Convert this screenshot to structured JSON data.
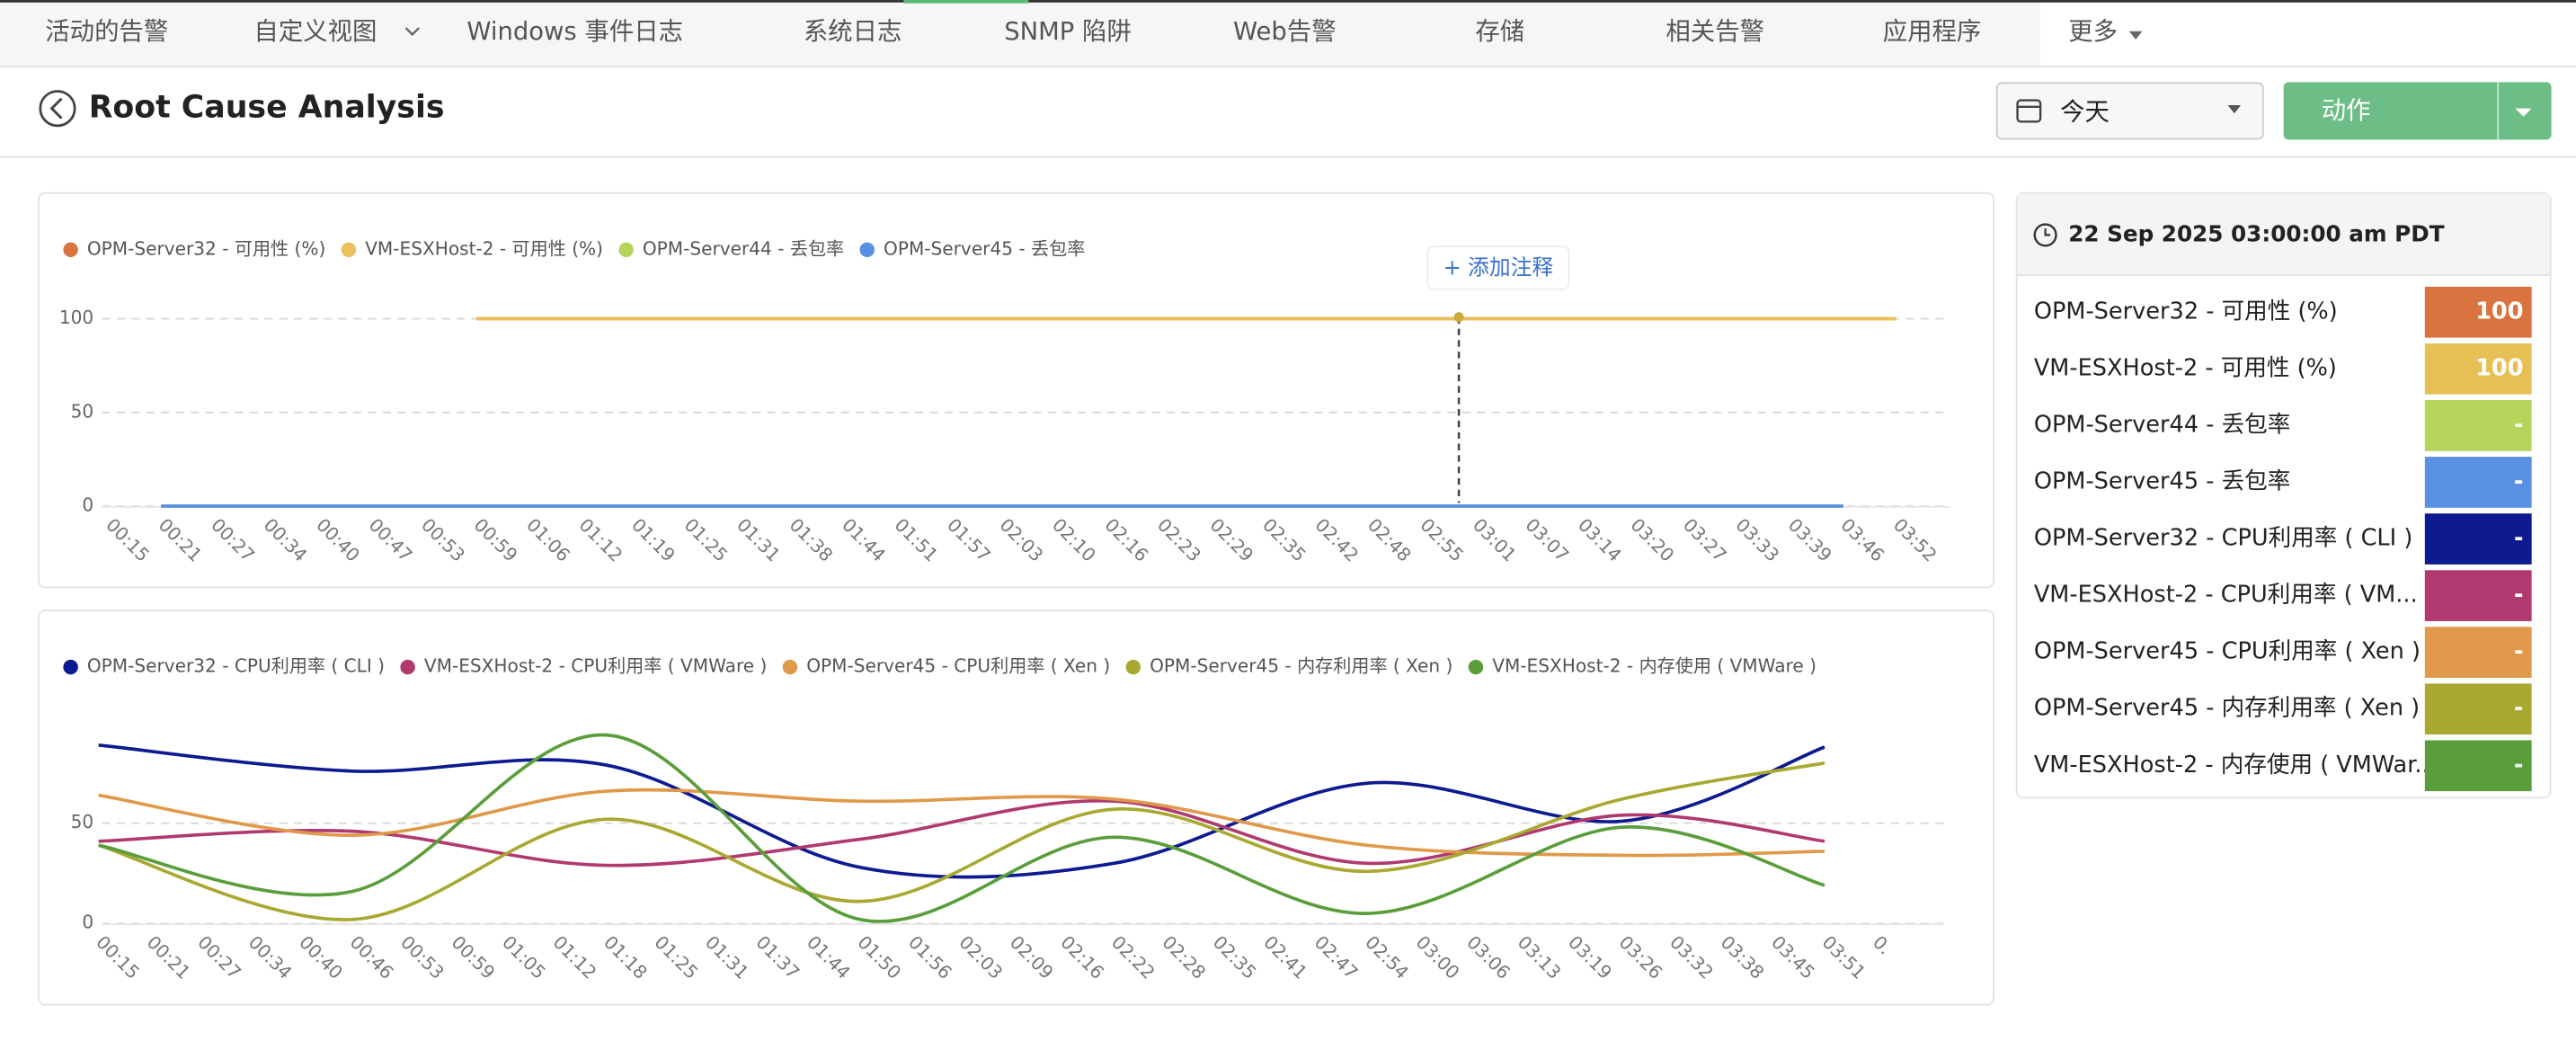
{
  "nav": [
    "活动的告警",
    "自定义视图",
    "Windows 事件日志",
    "系统日志",
    "SNMP 陷阱",
    "Web告警",
    "存储",
    "相关告警",
    "应用程序",
    "更多"
  ],
  "header": {
    "title": "Root Cause Analysis",
    "date": "今天",
    "action": "动作"
  },
  "tooltip": "+ 添加注释",
  "chart_data": [
    {
      "type": "line",
      "ylim": [
        0,
        100
      ],
      "yticks": [
        0,
        50,
        100
      ],
      "grid": true,
      "categories": [
        "00:15",
        "00:21",
        "00:27",
        "00:34",
        "00:40",
        "00:47",
        "00:53",
        "00:59",
        "01:06",
        "01:12",
        "01:19",
        "01:25",
        "01:31",
        "01:38",
        "01:44",
        "01:51",
        "01:57",
        "02:03",
        "02:10",
        "02:16",
        "02:23",
        "02:29",
        "02:35",
        "02:42",
        "02:48",
        "02:55",
        "03:01",
        "03:07",
        "03:14",
        "03:20",
        "03:27",
        "03:33",
        "03:39",
        "03:46",
        "03:52"
      ],
      "series": [
        {
          "name": "OPM-Server32 - 可用性 (%)",
          "color": "#d9733f",
          "x": [
            "00:59",
            "03:52"
          ],
          "values": [
            100,
            100
          ]
        },
        {
          "name": "VM-ESXHost-2 - 可用性 (%)",
          "color": "#e9c05a",
          "x": [
            "00:59",
            "03:52"
          ],
          "values": [
            100,
            100
          ]
        },
        {
          "name": "OPM-Server44 - 丢包率",
          "color": "#b6d35c",
          "x": [
            "00:21",
            "03:46"
          ],
          "values": [
            0,
            0
          ]
        },
        {
          "name": "OPM-Server45 - 丢包率",
          "color": "#5a90e2",
          "x": [
            "00:21",
            "03:46"
          ],
          "values": [
            0,
            0
          ]
        }
      ]
    },
    {
      "type": "line",
      "ylim": [
        0,
        100
      ],
      "yticks": [
        0,
        50
      ],
      "grid": true,
      "categories": [
        "00:15",
        "00:21",
        "00:27",
        "00:34",
        "00:40",
        "00:46",
        "00:53",
        "00:59",
        "01:05",
        "01:12",
        "01:18",
        "01:25",
        "01:31",
        "01:37",
        "01:44",
        "01:50",
        "01:56",
        "02:03",
        "02:09",
        "02:16",
        "02:22",
        "02:28",
        "02:35",
        "02:41",
        "02:47",
        "02:54",
        "03:00",
        "03:06",
        "03:13",
        "03:19",
        "03:26",
        "03:32",
        "03:38",
        "03:45",
        "03:51",
        "0."
      ],
      "series": [
        {
          "name": "OPM-Server32 - CPU利用率 ( CLI )",
          "color": "#0d1a90",
          "x": [
            "00:15",
            "00:46",
            "01:18",
            "01:50",
            "02:22",
            "02:54",
            "03:26",
            "03:51"
          ],
          "values": [
            89,
            76,
            79,
            28,
            30,
            70,
            51,
            88
          ]
        },
        {
          "name": "VM-ESXHost-2 - CPU利用率 ( VMWare )",
          "color": "#b03a70",
          "x": [
            "00:15",
            "00:46",
            "01:18",
            "01:50",
            "02:22",
            "02:54",
            "03:26",
            "03:51"
          ],
          "values": [
            41,
            46,
            29,
            42,
            61,
            30,
            54,
            41
          ]
        },
        {
          "name": "OPM-Server45 - CPU利用率 ( Xen )",
          "color": "#e0994a",
          "x": [
            "00:15",
            "00:46",
            "01:18",
            "01:50",
            "02:22",
            "02:54",
            "03:26",
            "03:51"
          ],
          "values": [
            64,
            44,
            66,
            61,
            62,
            39,
            34,
            36
          ]
        },
        {
          "name": "OPM-Server45 - 内存利用率 ( Xen )",
          "color": "#a8a832",
          "x": [
            "00:15",
            "00:46",
            "01:18",
            "01:50",
            "02:22",
            "02:54",
            "03:26",
            "03:51"
          ],
          "values": [
            39,
            2,
            52,
            11,
            57,
            26,
            62,
            80
          ]
        },
        {
          "name": "VM-ESXHost-2 - 内存使用 ( VMWare )",
          "color": "#5a9e3c",
          "x": [
            "00:15",
            "00:46",
            "01:18",
            "01:50",
            "02:22",
            "02:54",
            "03:26",
            "03:51"
          ],
          "values": [
            39,
            16,
            94,
            2,
            43,
            5,
            48,
            19
          ]
        }
      ]
    }
  ],
  "panel": {
    "time": "22 Sep 2025 03:00:00 am PDT",
    "rows": [
      {
        "name": "OPM-Server32 - 可用性 (%)",
        "value": 100,
        "color": "#d9733f"
      },
      {
        "name": "VM-ESXHost-2 - 可用性 (%)",
        "value": 100,
        "color": "#e6c055"
      },
      {
        "name": "OPM-Server44 - 丢包率",
        "value": "-",
        "color": "#b6d35c"
      },
      {
        "name": "OPM-Server45 - 丢包率",
        "value": "-",
        "color": "#5a90e2"
      },
      {
        "name": "OPM-Server32 - CPU利用率 ( CLI )",
        "value": "-",
        "color": "#0d1a90"
      },
      {
        "name": "VM-ESXHost-2 - CPU利用率 ( VM...",
        "value": "-",
        "color": "#b03a70"
      },
      {
        "name": "OPM-Server45 - CPU利用率 ( Xen )",
        "value": "-",
        "color": "#e0994a"
      },
      {
        "name": "OPM-Server45 - 内存利用率 ( Xen )",
        "value": "-",
        "color": "#a8a832"
      },
      {
        "name": "VM-ESXHost-2 - 内存使用 ( VMWar...",
        "value": "-",
        "color": "#5a9e3c"
      }
    ]
  }
}
